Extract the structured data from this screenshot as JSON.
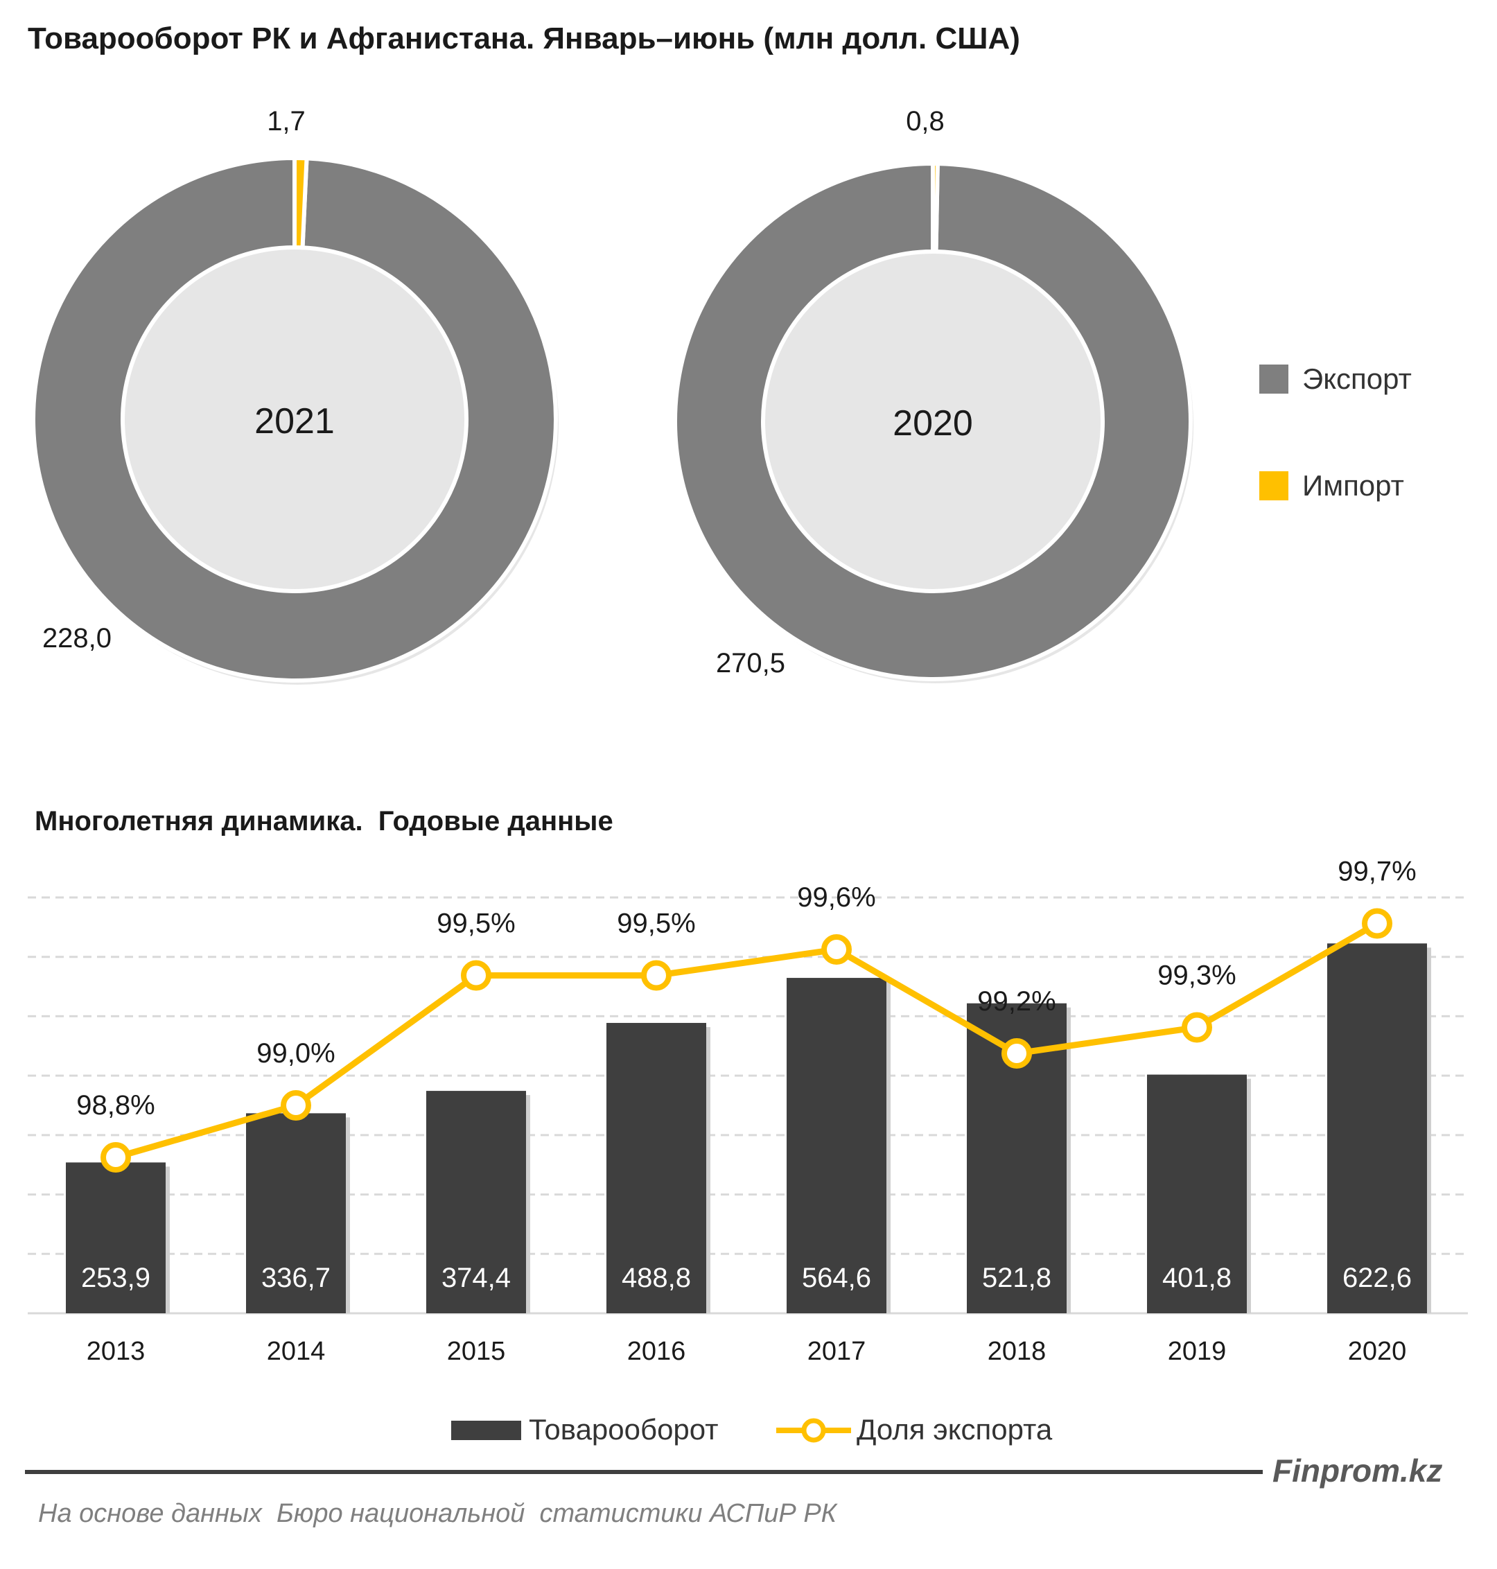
{
  "title": "Товарооборот РК и Афганистана. Январь–июнь (млн долл. США)",
  "colors": {
    "export": "#7f7f7f",
    "import": "#ffc000",
    "bar": "#3f3f3f",
    "line": "#ffc000",
    "grid": "#d9d9d9",
    "text": "#1a1a1a"
  },
  "chart_data": [
    {
      "type": "pie",
      "variant": "donut",
      "center_label": "2021",
      "slices": [
        {
          "name": "Экспорт",
          "value": 228.0,
          "label": "228,0"
        },
        {
          "name": "Импорт",
          "value": 1.7,
          "label": "1,7"
        }
      ]
    },
    {
      "type": "pie",
      "variant": "donut",
      "center_label": "2020",
      "slices": [
        {
          "name": "Экспорт",
          "value": 270.5,
          "label": "270,5"
        },
        {
          "name": "Импорт",
          "value": 0.8,
          "label": "0,8"
        }
      ]
    },
    {
      "type": "bar",
      "title": "Многолетняя динамика.  Годовые данные",
      "categories": [
        "2013",
        "2014",
        "2015",
        "2016",
        "2017",
        "2018",
        "2019",
        "2020"
      ],
      "series": [
        {
          "name": "Товарооборот",
          "type": "bar",
          "values": [
            253.9,
            336.7,
            374.4,
            488.8,
            564.6,
            521.8,
            401.8,
            622.6
          ],
          "labels": [
            "253,9",
            "336,7",
            "374,4",
            "488,8",
            "564,6",
            "521,8",
            "401,8",
            "622,6"
          ]
        },
        {
          "name": "Доля экспорта",
          "type": "line",
          "axis": "secondary",
          "values": [
            98.8,
            99.0,
            99.5,
            99.5,
            99.6,
            99.2,
            99.3,
            99.7
          ],
          "labels": [
            "98,8%",
            "99,0%",
            "99,5%",
            "99,5%",
            "99,6%",
            "99,2%",
            "99,3%",
            "99,7%"
          ]
        }
      ],
      "ylim": [
        0,
        700
      ],
      "ylim_secondary": [
        98.2,
        99.8
      ],
      "grid": true,
      "legend": "bottom"
    }
  ],
  "legend_top": [
    {
      "label": "Экспорт"
    },
    {
      "label": "Импорт"
    }
  ],
  "brand": "Finprom.kz",
  "source": "На основе данных  Бюро национальной  статистики АСПиР РК"
}
